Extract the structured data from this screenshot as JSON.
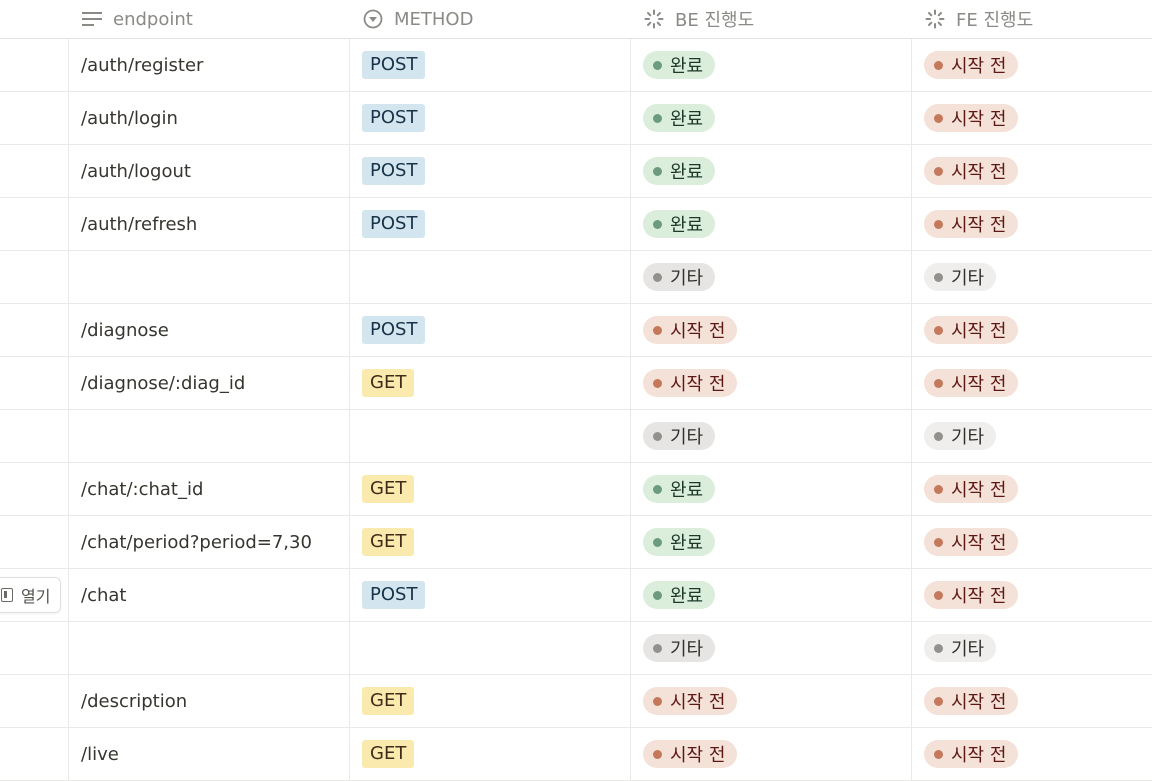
{
  "headers": {
    "endpoint": "endpoint",
    "method": "METHOD",
    "be": "BE 진행도",
    "fe": "FE 진행도",
    "endpoint_icon": "text-lines-icon",
    "method_icon": "select-circle-icon",
    "status_icon": "spinner-status-icon"
  },
  "open_button": {
    "label": "열기",
    "icon": "page-icon"
  },
  "colors": {
    "post_bg": "#d3e5ef",
    "get_bg": "#fbeaad",
    "done_bg": "#dbeddb",
    "todo_bg": "#f4e1d8",
    "etc_bg": "#e6e5e3"
  },
  "rows": [
    {
      "endpoint": "/auth/register",
      "method": "POST",
      "be": "완료",
      "fe": "시작 전"
    },
    {
      "endpoint": "/auth/login",
      "method": "POST",
      "be": "완료",
      "fe": "시작 전"
    },
    {
      "endpoint": "/auth/logout",
      "method": "POST",
      "be": "완료",
      "fe": "시작 전"
    },
    {
      "endpoint": "/auth/refresh",
      "method": "POST",
      "be": "완료",
      "fe": "시작 전"
    },
    {
      "endpoint": "",
      "method": "",
      "be": "기타",
      "fe": "기타"
    },
    {
      "endpoint": "/diagnose",
      "method": "POST",
      "be": "시작 전",
      "fe": "시작 전"
    },
    {
      "endpoint": "/diagnose/:diag_id",
      "method": "GET",
      "be": "시작 전",
      "fe": "시작 전"
    },
    {
      "endpoint": "",
      "method": "",
      "be": "기타",
      "fe": "기타"
    },
    {
      "endpoint": "/chat/:chat_id",
      "method": "GET",
      "be": "완료",
      "fe": "시작 전"
    },
    {
      "endpoint": "/chat/period?period=7,30",
      "method": "GET",
      "be": "완료",
      "fe": "시작 전"
    },
    {
      "endpoint": "/chat",
      "method": "POST",
      "be": "완료",
      "fe": "시작 전"
    },
    {
      "endpoint": "",
      "method": "",
      "be": "기타",
      "fe": "기타"
    },
    {
      "endpoint": "/description",
      "method": "GET",
      "be": "시작 전",
      "fe": "시작 전"
    },
    {
      "endpoint": "/live",
      "method": "GET",
      "be": "시작 전",
      "fe": "시작 전"
    }
  ]
}
